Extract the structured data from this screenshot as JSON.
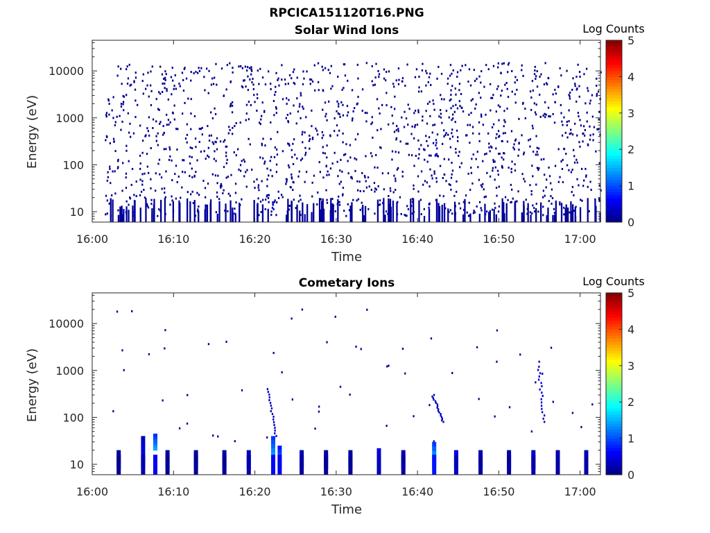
{
  "figure": {
    "title": "RPCICA151120T16.PNG"
  },
  "chart_data": [
    {
      "type": "heatmap",
      "title": "Solar Wind Ions",
      "xlabel": "Time",
      "ylabel": "Energy (eV)",
      "x_ticks": [
        "16:00",
        "16:10",
        "16:20",
        "16:30",
        "16:40",
        "16:50",
        "17:00"
      ],
      "x_range_minutes": [
        0,
        62.5
      ],
      "y_ticks": [
        "10",
        "100",
        "1000",
        "10000"
      ],
      "y_scale": "log",
      "y_range": [
        6,
        45000
      ],
      "colorbar": {
        "label": "Log Counts",
        "range": [
          0,
          5
        ],
        "ticks": [
          "0",
          "1",
          "2",
          "3",
          "4",
          "5"
        ],
        "colormap": "jet"
      },
      "description_level": "sparse scattered pixels at log counts ~0 across all energies, denser columns below 20 eV",
      "typical_log_counts": 0.05,
      "notable_enhancements": [
        {
          "time": "16:22",
          "energy_range": [
            10,
            20
          ],
          "log_counts": 0.3
        },
        {
          "time": "16:42",
          "energy_range": [
            150,
            300
          ],
          "log_counts": 0.4
        }
      ]
    },
    {
      "type": "heatmap",
      "title": "Cometary Ions",
      "xlabel": "Time",
      "ylabel": "Energy (eV)",
      "x_ticks": [
        "16:00",
        "16:10",
        "16:20",
        "16:30",
        "16:40",
        "16:50",
        "17:00"
      ],
      "x_range_minutes": [
        0,
        62.5
      ],
      "y_ticks": [
        "10",
        "100",
        "1000",
        "10000"
      ],
      "y_scale": "log",
      "y_range": [
        6,
        45000
      ],
      "colorbar": {
        "label": "Log Counts",
        "range": [
          0,
          5
        ],
        "ticks": [
          "0",
          "1",
          "2",
          "3",
          "4",
          "5"
        ],
        "colormap": "jet"
      },
      "low_energy_bursts": [
        {
          "minute": 3.0,
          "e_lo": 8,
          "e_hi": 20,
          "lc": 0.2
        },
        {
          "minute": 6.0,
          "e_lo": 8,
          "e_hi": 40,
          "lc": 0.6
        },
        {
          "minute": 7.5,
          "e_lo": 20,
          "e_hi": 45,
          "lc": 1.5
        },
        {
          "minute": 9.0,
          "e_lo": 8,
          "e_hi": 20,
          "lc": 0.3
        },
        {
          "minute": 12.5,
          "e_lo": 8,
          "e_hi": 20,
          "lc": 0.3
        },
        {
          "minute": 16.0,
          "e_lo": 8,
          "e_hi": 20,
          "lc": 0.3
        },
        {
          "minute": 19.0,
          "e_lo": 8,
          "e_hi": 20,
          "lc": 0.6
        },
        {
          "minute": 22.0,
          "e_lo": 12,
          "e_hi": 40,
          "lc": 1.6
        },
        {
          "minute": 22.8,
          "e_lo": 8,
          "e_hi": 25,
          "lc": 1.4
        },
        {
          "minute": 25.5,
          "e_lo": 8,
          "e_hi": 20,
          "lc": 0.4
        },
        {
          "minute": 28.5,
          "e_lo": 8,
          "e_hi": 20,
          "lc": 0.3
        },
        {
          "minute": 31.5,
          "e_lo": 8,
          "e_hi": 20,
          "lc": 0.3
        },
        {
          "minute": 35.0,
          "e_lo": 8,
          "e_hi": 22,
          "lc": 0.8
        },
        {
          "minute": 38.0,
          "e_lo": 8,
          "e_hi": 20,
          "lc": 0.4
        },
        {
          "minute": 41.8,
          "e_lo": 8,
          "e_hi": 30,
          "lc": 1.8
        },
        {
          "minute": 44.5,
          "e_lo": 8,
          "e_hi": 20,
          "lc": 0.8
        },
        {
          "minute": 47.5,
          "e_lo": 8,
          "e_hi": 20,
          "lc": 0.4
        },
        {
          "minute": 51.0,
          "e_lo": 8,
          "e_hi": 20,
          "lc": 0.4
        },
        {
          "minute": 54.0,
          "e_lo": 8,
          "e_hi": 20,
          "lc": 0.6
        },
        {
          "minute": 57.0,
          "e_lo": 8,
          "e_hi": 20,
          "lc": 0.5
        },
        {
          "minute": 60.5,
          "e_lo": 8,
          "e_hi": 20,
          "lc": 0.5
        }
      ],
      "dispersion_traces": [
        {
          "start_minute": 21.5,
          "start_energy": 400,
          "end_minute": 22.5,
          "end_energy": 40,
          "lc": 0.2
        },
        {
          "start_minute": 41.8,
          "start_energy": 300,
          "end_minute": 43.0,
          "end_energy": 80,
          "lc": 0.2
        },
        {
          "start_minute": 54.8,
          "start_energy": 1200,
          "end_minute": 55.5,
          "end_energy": 80,
          "lc": 0.3
        }
      ]
    }
  ]
}
